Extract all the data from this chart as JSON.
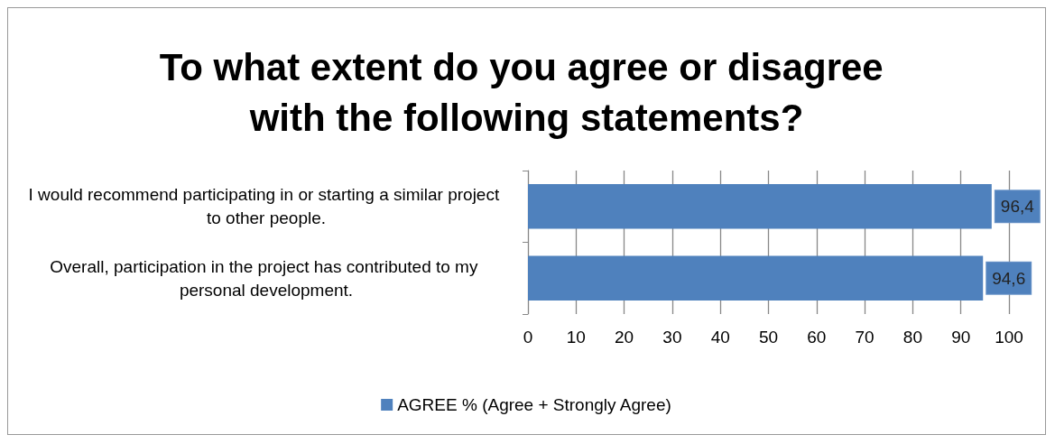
{
  "chart_data": {
    "type": "bar",
    "orientation": "horizontal",
    "title": "To what extent do you agree or disagree with the following statements?",
    "categories": [
      "I would recommend participating in or starting a similar project to other people.",
      "Overall, participation in the project has contributed to my personal development."
    ],
    "series": [
      {
        "name": "AGREE % (Agree + Strongly Agree)",
        "color": "#4f81bd",
        "values": [
          96.4,
          94.6
        ],
        "value_labels": [
          "96,4",
          "94,6"
        ]
      }
    ],
    "xlim": [
      0,
      100
    ],
    "xticks": [
      0,
      10,
      20,
      30,
      40,
      50,
      60,
      70,
      80,
      90,
      100
    ],
    "grid": "x",
    "legend": "bottom"
  }
}
